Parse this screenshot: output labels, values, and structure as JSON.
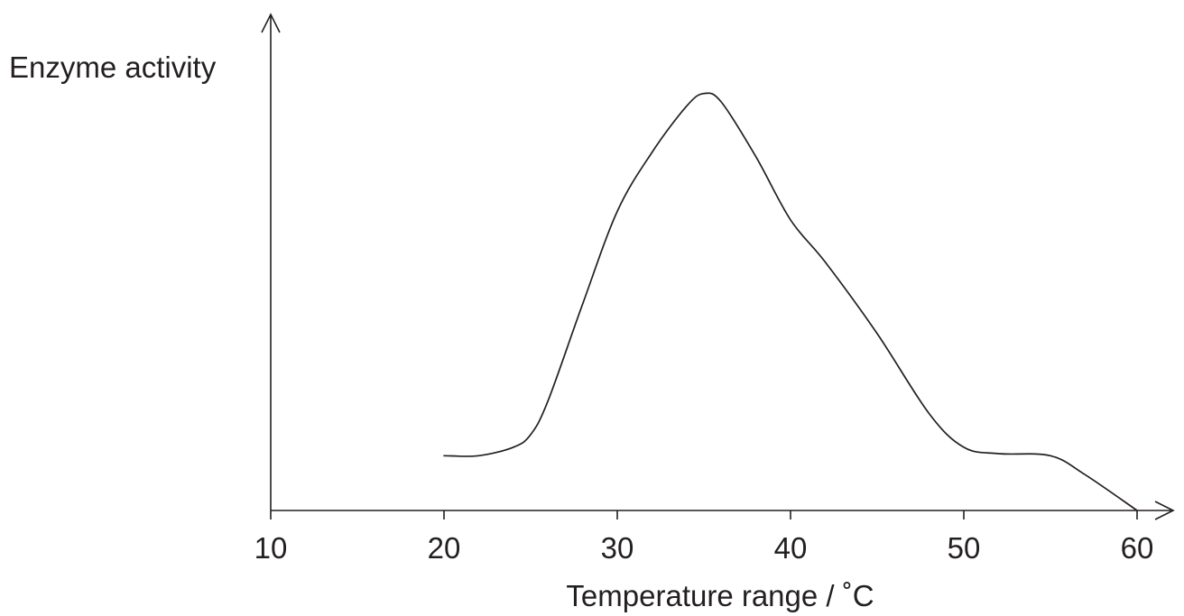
{
  "chart_data": {
    "type": "line",
    "title": "",
    "xlabel": "Temperature range / ˚C",
    "ylabel": "Enzyme activity",
    "xlim": [
      10,
      60
    ],
    "ylim": [
      0,
      10
    ],
    "xticks": [
      "10",
      "20",
      "30",
      "40",
      "50",
      "60"
    ],
    "yticks": [],
    "grid": false,
    "legend": "none",
    "series": [
      {
        "x": [
          20,
          22,
          24,
          25,
          26,
          28,
          30,
          32,
          34,
          35,
          36,
          38,
          40,
          42,
          45,
          48,
          50,
          52,
          55,
          57,
          60
        ],
        "y": [
          1.3,
          1.3,
          1.5,
          1.8,
          2.6,
          4.9,
          7.1,
          8.5,
          9.6,
          9.9,
          9.7,
          8.4,
          6.9,
          5.9,
          4.2,
          2.3,
          1.5,
          1.35,
          1.3,
          0.85,
          0
        ]
      }
    ],
    "colors": {
      "line": "#231f20",
      "axis": "#231f20",
      "text": "#231f20"
    }
  }
}
